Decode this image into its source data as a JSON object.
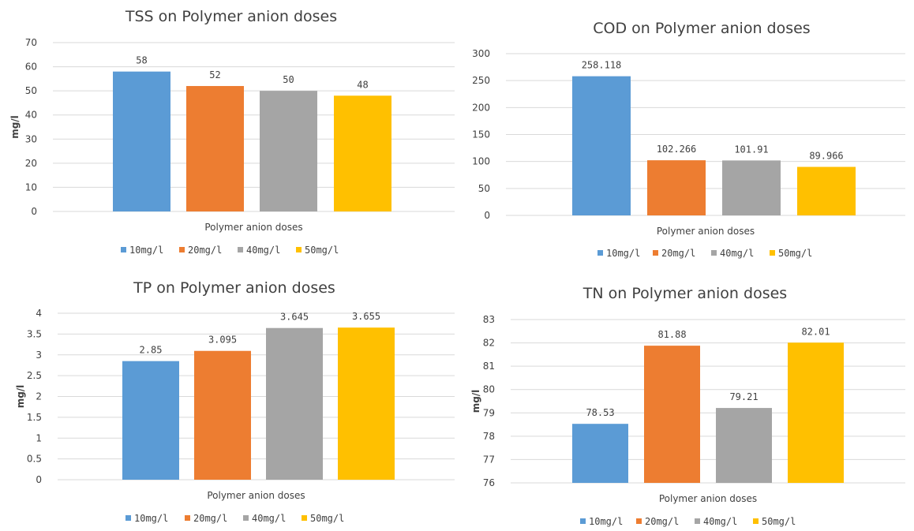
{
  "chart_data": [
    {
      "type": "bar",
      "title": "TSS on Polymer anion doses",
      "xlabel": "Polymer anion doses",
      "ylabel": "mg/l",
      "ylim": [
        0,
        70
      ],
      "yticks": [
        "0",
        "10",
        "20",
        "30",
        "40",
        "50",
        "60",
        "70"
      ],
      "grid": true,
      "legend_position": "bottom",
      "series": [
        {
          "name": "10mg/l",
          "value": 58,
          "label": "58",
          "color": "#5b9bd5"
        },
        {
          "name": "20mg/l",
          "value": 52,
          "label": "52",
          "color": "#ed7d31"
        },
        {
          "name": "40mg/l",
          "value": 50,
          "label": "50",
          "color": "#a5a5a5"
        },
        {
          "name": "50mg/l",
          "value": 48,
          "label": "48",
          "color": "#ffc000"
        }
      ]
    },
    {
      "type": "bar",
      "title": "COD on Polymer anion doses",
      "xlabel": "Polymer anion doses",
      "ylabel": "",
      "ylim": [
        0,
        300
      ],
      "yticks": [
        "0",
        "50",
        "100",
        "150",
        "200",
        "250",
        "300"
      ],
      "grid": true,
      "legend_position": "bottom",
      "series": [
        {
          "name": "10mg/l",
          "value": 258.118,
          "label": "258.118",
          "color": "#5b9bd5"
        },
        {
          "name": "20mg/l",
          "value": 102.266,
          "label": "102.266",
          "color": "#ed7d31"
        },
        {
          "name": "40mg/l",
          "value": 101.91,
          "label": "101.91",
          "color": "#a5a5a5"
        },
        {
          "name": "50mg/l",
          "value": 89.966,
          "label": "89.966",
          "color": "#ffc000"
        }
      ]
    },
    {
      "type": "bar",
      "title": "TP on Polymer anion doses",
      "xlabel": "Polymer anion doses",
      "ylabel": "mg/l",
      "ylim": [
        0,
        4
      ],
      "yticks": [
        "0",
        "0.5",
        "1",
        "1.5",
        "2",
        "2.5",
        "3",
        "3.5",
        "4"
      ],
      "grid": true,
      "legend_position": "bottom",
      "series": [
        {
          "name": "10mg/l",
          "value": 2.85,
          "label": "2.85",
          "color": "#5b9bd5"
        },
        {
          "name": "20mg/l",
          "value": 3.095,
          "label": "3.095",
          "color": "#ed7d31"
        },
        {
          "name": "40mg/l",
          "value": 3.645,
          "label": "3.645",
          "color": "#a5a5a5"
        },
        {
          "name": "50mg/l",
          "value": 3.655,
          "label": "3.655",
          "color": "#ffc000"
        }
      ]
    },
    {
      "type": "bar",
      "title": "TN on Polymer anion doses",
      "xlabel": "Polymer anion doses",
      "ylabel": "mg/l",
      "ylim": [
        76,
        83
      ],
      "yticks": [
        "76",
        "77",
        "78",
        "79",
        "80",
        "81",
        "82",
        "83"
      ],
      "grid": true,
      "legend_position": "bottom",
      "series": [
        {
          "name": "10mg/l",
          "value": 78.53,
          "label": "78.53",
          "color": "#5b9bd5"
        },
        {
          "name": "20mg/l",
          "value": 81.88,
          "label": "81.88",
          "color": "#ed7d31"
        },
        {
          "name": "40mg/l",
          "value": 79.21,
          "label": "79.21",
          "color": "#a5a5a5"
        },
        {
          "name": "50mg/l",
          "value": 82.01,
          "label": "82.01",
          "color": "#ffc000"
        }
      ]
    }
  ]
}
